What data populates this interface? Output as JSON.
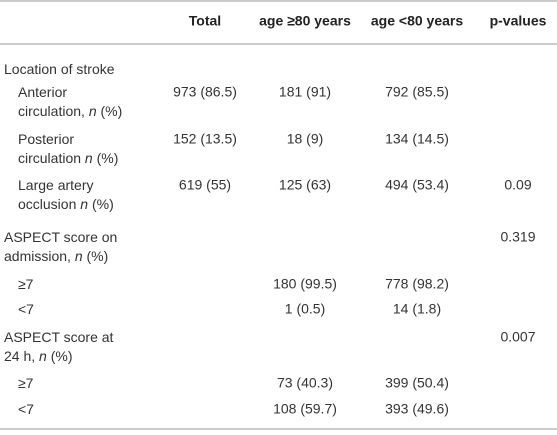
{
  "table": {
    "columns": [
      "Total",
      "age ≥80 years",
      "age <80 years",
      "p-values"
    ],
    "rows": [
      {
        "label": [
          [
            {
              "text": "Location of stroke"
            }
          ]
        ],
        "indent": false,
        "cells": [
          null,
          null,
          null,
          null
        ]
      },
      {
        "label": [
          [
            {
              "text": "Anterior"
            }
          ],
          [
            {
              "text": "circulation, "
            },
            {
              "text": "n",
              "italic": true
            },
            {
              "text": " (%)"
            }
          ]
        ],
        "indent": true,
        "cells": [
          "973 (86.5)",
          "181 (91)",
          "792 (85.5)",
          null
        ]
      },
      {
        "label": [
          [
            {
              "text": "Posterior"
            }
          ],
          [
            {
              "text": "circulation "
            },
            {
              "text": "n",
              "italic": true
            },
            {
              "text": " (%)"
            }
          ]
        ],
        "indent": true,
        "cells": [
          "152 (13.5)",
          "18 (9)",
          "134 (14.5)",
          null
        ]
      },
      {
        "label": [
          [
            {
              "text": "Large artery"
            }
          ],
          [
            {
              "text": "occlusion "
            },
            {
              "text": "n",
              "italic": true
            },
            {
              "text": " (%)"
            }
          ]
        ],
        "indent": true,
        "cells": [
          "619 (55)",
          "125 (63)",
          "494 (53.4)",
          "0.09"
        ]
      },
      {
        "label": [
          [
            {
              "text": "ASPECT score on"
            }
          ],
          [
            {
              "text": "admission, "
            },
            {
              "text": "n",
              "italic": true
            },
            {
              "text": " (%)"
            }
          ]
        ],
        "indent": false,
        "cells": [
          null,
          null,
          null,
          "0.319"
        ]
      },
      {
        "label": [
          [
            {
              "text": "≥7"
            }
          ]
        ],
        "indent": true,
        "cells": [
          null,
          "180 (99.5)",
          "778 (98.2)",
          null
        ]
      },
      {
        "label": [
          [
            {
              "text": "<7"
            }
          ]
        ],
        "indent": true,
        "cells": [
          null,
          "1 (0.5)",
          "14 (1.8)",
          null
        ]
      },
      {
        "label": [
          [
            {
              "text": "ASPECT score at"
            }
          ],
          [
            {
              "text": "24 h, "
            },
            {
              "text": "n",
              "italic": true
            },
            {
              "text": " (%)"
            }
          ]
        ],
        "indent": false,
        "cells": [
          null,
          null,
          null,
          "0.007"
        ]
      },
      {
        "label": [
          [
            {
              "text": "≥7"
            }
          ]
        ],
        "indent": true,
        "cells": [
          null,
          "73 (40.3)",
          "399 (50.4)",
          null
        ]
      },
      {
        "label": [
          [
            {
              "text": "<7"
            }
          ]
        ],
        "indent": true,
        "cells": [
          null,
          "108 (59.7)",
          "393 (49.6)",
          null
        ]
      }
    ]
  }
}
